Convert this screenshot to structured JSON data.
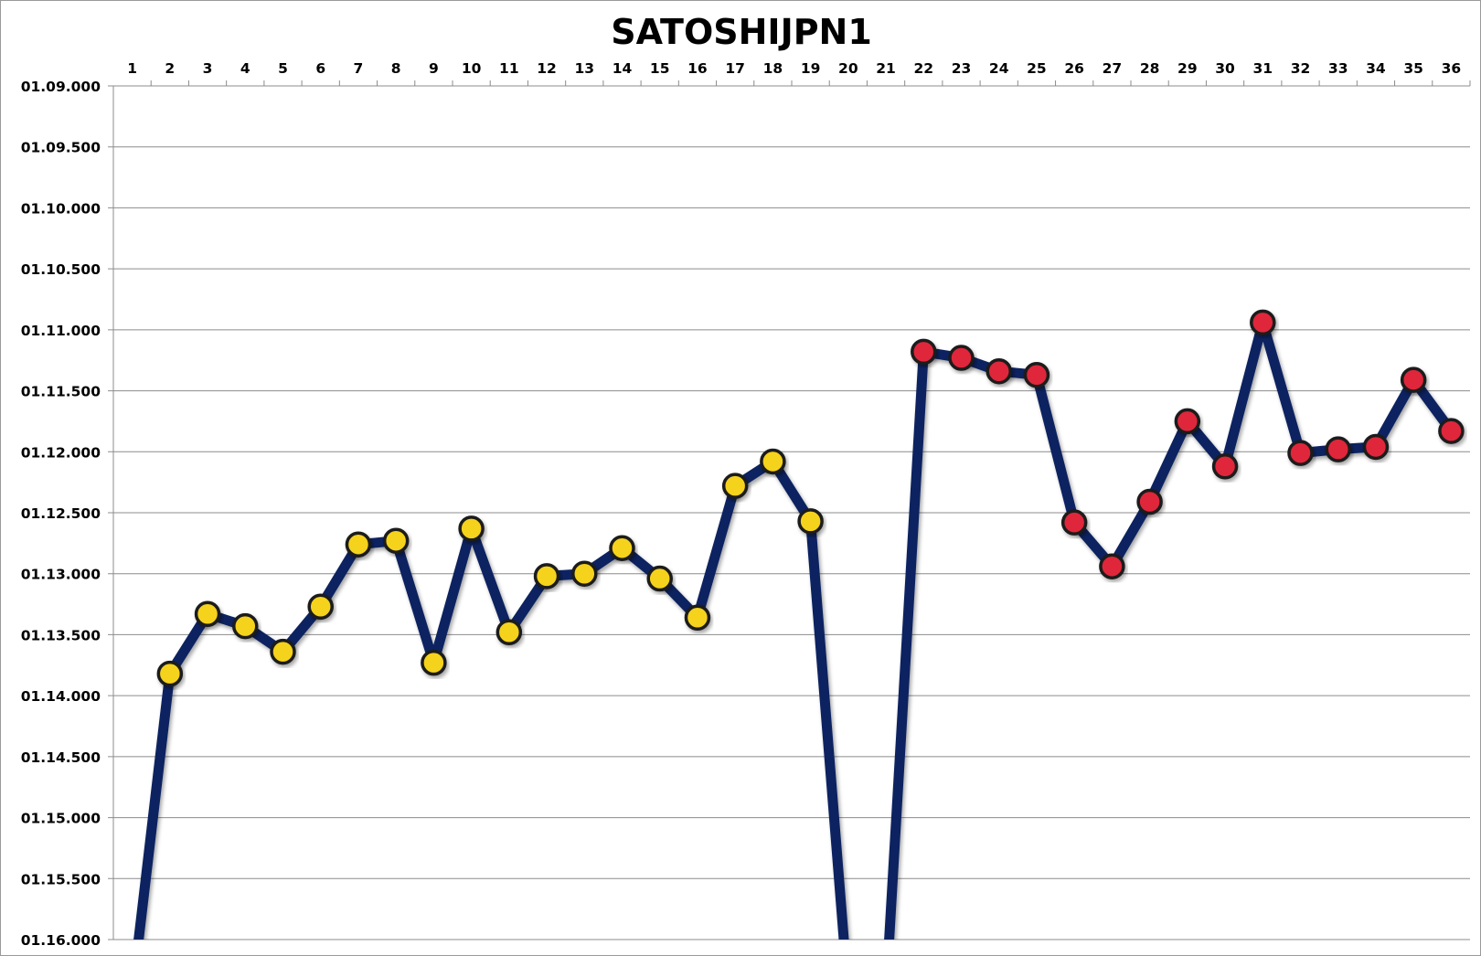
{
  "chart_data": {
    "type": "line",
    "title": "SATOSHIJPN1",
    "xlabel": "",
    "ylabel": "",
    "categories": [
      "1",
      "2",
      "3",
      "4",
      "5",
      "6",
      "7",
      "8",
      "9",
      "10",
      "11",
      "12",
      "13",
      "14",
      "15",
      "16",
      "17",
      "18",
      "19",
      "20",
      "21",
      "22",
      "23",
      "24",
      "25",
      "26",
      "27",
      "28",
      "29",
      "30",
      "31",
      "32",
      "33",
      "34",
      "35",
      "36"
    ],
    "y_ticks": [
      "01.09.000",
      "01.09.500",
      "01.10.000",
      "01.10.500",
      "01.11.000",
      "01.11.500",
      "01.12.000",
      "01.12.500",
      "01.13.000",
      "01.13.500",
      "01.14.000",
      "01.14.500",
      "01.15.000",
      "01.15.500",
      "01.16.000"
    ],
    "y_units": "seconds (lap time m.ss.sss)",
    "ylim": [
      69.0,
      76.0
    ],
    "y_inverted": true,
    "grid": true,
    "legend": "none",
    "line_color": "#0b2461",
    "series": [
      {
        "values": [
          null,
          73.82,
          73.33,
          73.43,
          73.64,
          73.27,
          72.76,
          72.73,
          73.73,
          72.63,
          73.48,
          73.02,
          73.0,
          72.79,
          73.04,
          73.36,
          72.28,
          72.08,
          72.57,
          null,
          null,
          71.18,
          71.23,
          71.34,
          71.37,
          72.58,
          72.94,
          72.41,
          71.75,
          72.12,
          70.94,
          72.01,
          71.98,
          71.96,
          71.41,
          71.83
        ],
        "marker_colors": [
          "",
          "#f5d21c",
          "#f5d21c",
          "#f5d21c",
          "#f5d21c",
          "#f5d21c",
          "#f5d21c",
          "#f5d21c",
          "#f5d21c",
          "#f5d21c",
          "#f5d21c",
          "#f5d21c",
          "#f5d21c",
          "#f5d21c",
          "#f5d21c",
          "#f5d21c",
          "#f5d21c",
          "#f5d21c",
          "#f5d21c",
          "",
          "",
          "#e0283a",
          "#e0283a",
          "#e0283a",
          "#e0283a",
          "#e0283a",
          "#e0283a",
          "#e0283a",
          "#e0283a",
          "#e0283a",
          "#e0283a",
          "#e0283a",
          "#e0283a",
          "#e0283a",
          "#e0283a",
          "#e0283a"
        ]
      }
    ],
    "offscale_below": [
      1,
      20,
      21
    ]
  }
}
